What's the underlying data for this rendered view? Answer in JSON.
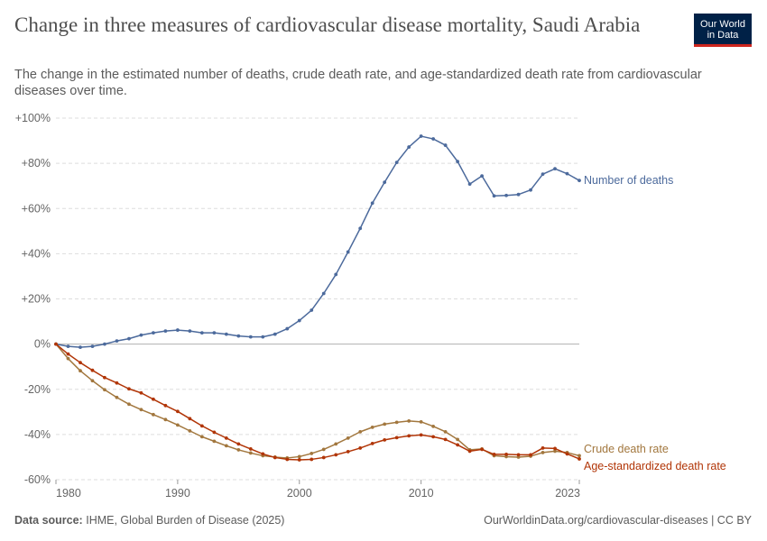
{
  "header": {
    "title": "Change in three measures of cardiovascular disease mortality, Saudi Arabia",
    "subtitle": "The change in the estimated number of deaths, crude death rate, and age-standardized death rate from cardiovascular diseases over time.",
    "logo_line1": "Our World",
    "logo_line2": "in Data"
  },
  "footer": {
    "source_label": "Data source:",
    "source_text": "IHME, Global Burden of Disease (2025)",
    "url_text": "OurWorldinData.org/cardiovascular-diseases | CC BY"
  },
  "colors": {
    "deaths": "#4c6a9c",
    "crude": "#a2773e",
    "age_std": "#b13507",
    "grid": "#dddddd",
    "zero_line": "#b0b0b0",
    "axis_text": "#666666"
  },
  "chart_data": {
    "type": "line",
    "x": [
      1980,
      1981,
      1982,
      1983,
      1984,
      1985,
      1986,
      1987,
      1988,
      1989,
      1990,
      1991,
      1992,
      1993,
      1994,
      1995,
      1996,
      1997,
      1998,
      1999,
      2000,
      2001,
      2002,
      2003,
      2004,
      2005,
      2006,
      2007,
      2008,
      2009,
      2010,
      2011,
      2012,
      2013,
      2014,
      2015,
      2016,
      2017,
      2018,
      2019,
      2020,
      2021,
      2022,
      2023
    ],
    "series": [
      {
        "name": "Number of deaths",
        "values": [
          0,
          -1,
          -1.4,
          -1,
          0,
          1.4,
          2.4,
          4,
          5,
          5.8,
          6.2,
          5.8,
          5,
          5,
          4.4,
          3.6,
          3.2,
          3.2,
          4.4,
          6.8,
          10.4,
          15,
          22.4,
          30.8,
          40.8,
          51.2,
          62.4,
          71.6,
          80.4,
          87.2,
          92,
          90.8,
          88,
          80.8,
          70.8,
          74.4,
          65.6,
          65.8,
          66.2,
          68.2,
          75.2,
          77.6,
          75.4,
          72.4
        ]
      },
      {
        "name": "Crude death rate",
        "values": [
          0,
          -6.4,
          -11.8,
          -16.2,
          -20.2,
          -23.6,
          -26.6,
          -29,
          -31.2,
          -33.4,
          -35.8,
          -38.4,
          -41,
          -43,
          -45,
          -46.8,
          -48.2,
          -49.4,
          -50,
          -50.4,
          -49.8,
          -48.4,
          -46.6,
          -44.2,
          -41.6,
          -38.8,
          -36.8,
          -35.4,
          -34.6,
          -34,
          -34.4,
          -36.4,
          -38.8,
          -42.2,
          -46.8,
          -46.4,
          -49.4,
          -49.8,
          -50,
          -49.6,
          -48,
          -47.4,
          -48,
          -49.4
        ]
      },
      {
        "name": "Age-standardized death rate",
        "values": [
          0,
          -4.4,
          -8.2,
          -11.6,
          -14.8,
          -17.2,
          -19.8,
          -21.6,
          -24.4,
          -27.2,
          -29.8,
          -33,
          -36.2,
          -39,
          -41.6,
          -44.2,
          -46.4,
          -48.6,
          -50.2,
          -51,
          -51.2,
          -51,
          -50.2,
          -49,
          -47.6,
          -46,
          -44,
          -42.4,
          -41.4,
          -40.6,
          -40.2,
          -41,
          -42.2,
          -44.6,
          -47.4,
          -46.6,
          -48.8,
          -48.8,
          -49,
          -49,
          -46,
          -46.2,
          -48.6,
          -50.8
        ]
      }
    ],
    "y_ticks": [
      "+100%",
      "+80%",
      "+60%",
      "+40%",
      "+20%",
      "0%",
      "-20%",
      "-40%",
      "-60%"
    ],
    "y_tick_values": [
      100,
      80,
      60,
      40,
      20,
      0,
      -20,
      -40,
      -60
    ],
    "x_ticks": [
      "1980",
      "1990",
      "2000",
      "2010",
      "2023"
    ],
    "x_tick_values": [
      1980,
      1990,
      2000,
      2010,
      2023
    ],
    "xlim": [
      1980,
      2023
    ],
    "ylim": [
      -60,
      100
    ],
    "grid": "horizontal dashed",
    "legend": "right, labels at line ends"
  }
}
